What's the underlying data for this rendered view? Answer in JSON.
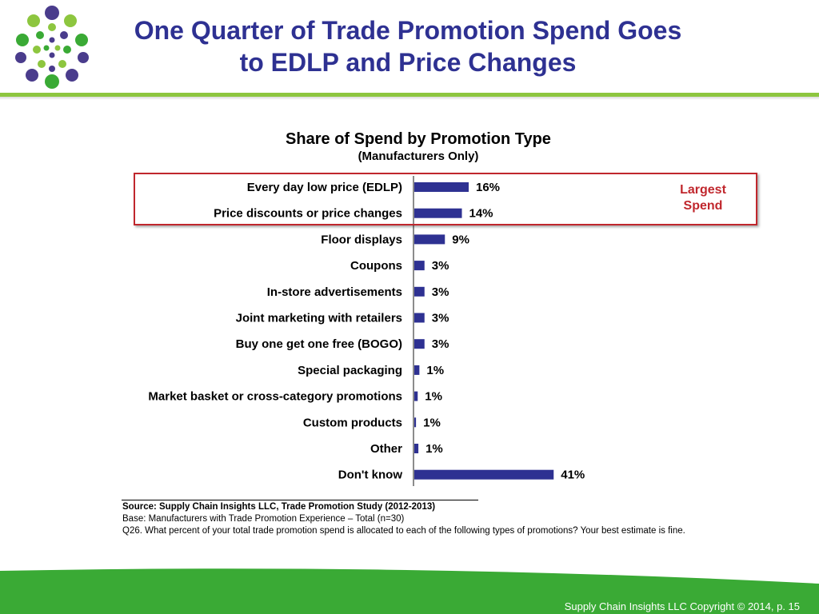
{
  "slide": {
    "title_line1": "One Quarter of Trade Promotion Spend Goes",
    "title_line2": "to EDLP and Price Changes",
    "footer": "Supply Chain Insights LLC Copyright © 2014, p. 15"
  },
  "callout": {
    "line1": "Largest",
    "line2": "Spend"
  },
  "notes": {
    "source": "Source:  Supply Chain Insights LLC, Trade Promotion Study (2012-2013)",
    "base": "Base:  Manufacturers with Trade Promotion Experience – Total (n=30)",
    "question": "Q26. What percent of your total trade promotion spend is allocated to each of the following types of promotions? Your best estimate is fine."
  },
  "colors": {
    "title": "#2e3192",
    "bar": "#2e3192",
    "highlight": "#c0272d",
    "green": "#3aaa35"
  },
  "chart_data": {
    "type": "bar",
    "orientation": "horizontal",
    "title": "Share of Spend by Promotion Type",
    "subtitle": "(Manufacturers Only)",
    "categories": [
      "Every day low price (EDLP)",
      "Price discounts or price changes",
      "Floor displays",
      "Coupons",
      "In-store advertisements",
      "Joint marketing with retailers",
      "Buy one get one free (BOGO)",
      "Special packaging",
      "Market basket or cross-category promotions",
      "Custom products",
      "Other",
      "Don't know"
    ],
    "values": [
      16,
      14,
      9,
      3,
      3,
      3,
      3,
      1,
      1,
      1,
      1,
      41
    ],
    "data_labels": [
      "16%",
      "14%",
      "9%",
      "3%",
      "3%",
      "3%",
      "3%",
      "1%",
      "1%",
      "1%",
      "1%",
      "41%"
    ],
    "bar_widths": [
      16,
      14,
      9,
      3,
      3,
      3,
      3,
      1.5,
      1,
      0.5,
      1.2,
      41
    ],
    "unit": "%",
    "xlim": [
      0,
      100
    ],
    "grid": false,
    "legend": "none"
  }
}
